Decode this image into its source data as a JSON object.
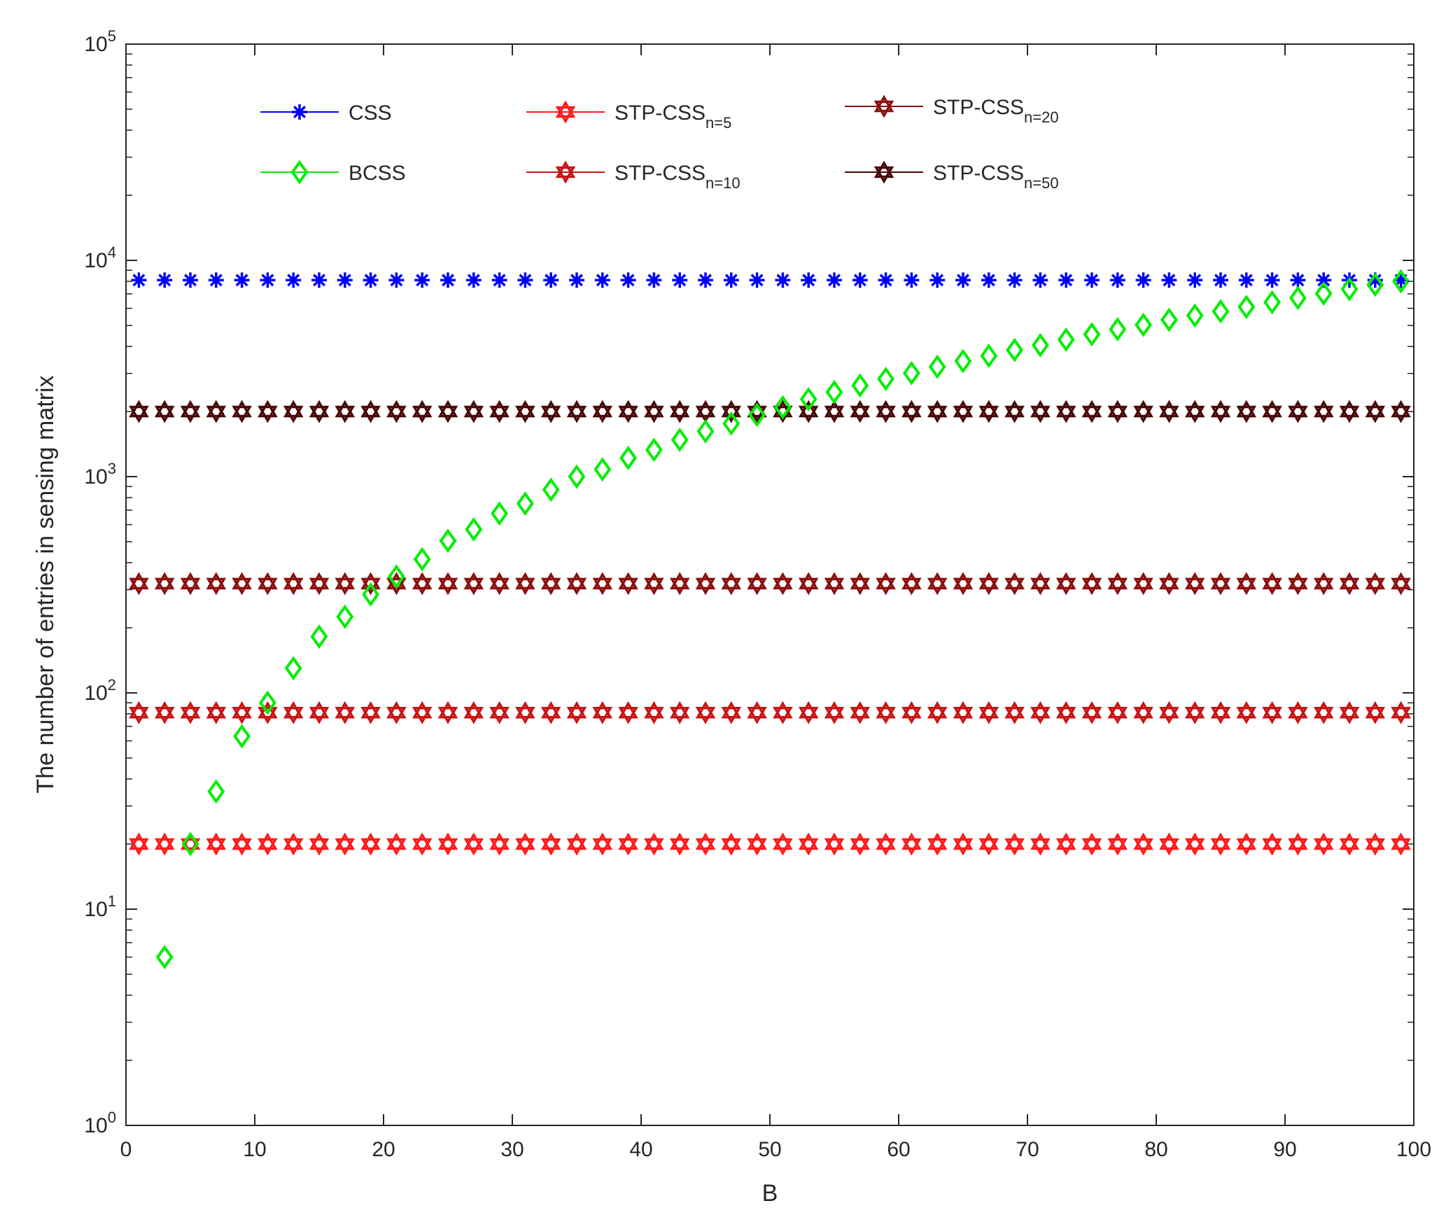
{
  "chart_data": {
    "type": "scatter",
    "title": "",
    "xlabel": "B",
    "ylabel": "The number of entries in sensing matrix",
    "xlim": [
      0,
      100
    ],
    "ylim": [
      1,
      100000
    ],
    "yscale": "log",
    "grid": false,
    "legend_position": "top",
    "x_ticks": [
      "0",
      "10",
      "20",
      "30",
      "40",
      "50",
      "60",
      "70",
      "80",
      "90",
      "100"
    ],
    "y_ticks": [
      {
        "base": "10",
        "exp": "0"
      },
      {
        "base": "10",
        "exp": "1"
      },
      {
        "base": "10",
        "exp": "2"
      },
      {
        "base": "10",
        "exp": "3"
      },
      {
        "base": "10",
        "exp": "4"
      },
      {
        "base": "10",
        "exp": "5"
      }
    ],
    "x": [
      1,
      3,
      5,
      7,
      9,
      11,
      13,
      15,
      17,
      19,
      21,
      23,
      25,
      27,
      29,
      31,
      33,
      35,
      37,
      39,
      41,
      43,
      45,
      47,
      49,
      51,
      53,
      55,
      57,
      59,
      61,
      63,
      65,
      67,
      69,
      71,
      73,
      75,
      77,
      79,
      81,
      83,
      85,
      87,
      89,
      91,
      93,
      95,
      97,
      99
    ],
    "series": [
      {
        "name": "CSS",
        "subscript": "",
        "color": "#0000ff",
        "marker": "asterisk",
        "values": [
          8100,
          8100,
          8100,
          8100,
          8100,
          8100,
          8100,
          8100,
          8100,
          8100,
          8100,
          8100,
          8100,
          8100,
          8100,
          8100,
          8100,
          8100,
          8100,
          8100,
          8100,
          8100,
          8100,
          8100,
          8100,
          8100,
          8100,
          8100,
          8100,
          8100,
          8100,
          8100,
          8100,
          8100,
          8100,
          8100,
          8100,
          8100,
          8100,
          8100,
          8100,
          8100,
          8100,
          8100,
          8100,
          8100,
          8100,
          8100,
          8100,
          8100
        ]
      },
      {
        "name": "BCSS",
        "subscript": "",
        "color": "#00ee00",
        "marker": "diamond",
        "x": [
          3,
          5,
          7,
          9,
          11,
          13,
          15,
          17,
          19,
          21,
          23,
          25,
          27,
          29,
          31,
          33,
          35,
          37,
          39,
          41,
          43,
          45,
          47,
          49,
          51,
          53,
          55,
          57,
          59,
          61,
          63,
          65,
          67,
          69,
          71,
          73,
          75,
          77,
          79,
          81,
          83,
          85,
          87,
          89,
          91,
          93,
          95,
          97,
          99
        ],
        "values": [
          6,
          20,
          35,
          63,
          90,
          130,
          182,
          225,
          285,
          345,
          415,
          505,
          570,
          675,
          750,
          870,
          1000,
          1080,
          1220,
          1330,
          1480,
          1620,
          1760,
          1930,
          2090,
          2280,
          2460,
          2640,
          2830,
          3010,
          3220,
          3420,
          3620,
          3850,
          4050,
          4300,
          4550,
          4800,
          5030,
          5310,
          5560,
          5810,
          6090,
          6400,
          6700,
          7020,
          7360,
          7710,
          8000
        ]
      },
      {
        "name": "STP-CSS",
        "subscript": "n=5",
        "color": "#ff1a1a",
        "marker": "hexagram",
        "values": [
          20,
          20,
          20,
          20,
          20,
          20,
          20,
          20,
          20,
          20,
          20,
          20,
          20,
          20,
          20,
          20,
          20,
          20,
          20,
          20,
          20,
          20,
          20,
          20,
          20,
          20,
          20,
          20,
          20,
          20,
          20,
          20,
          20,
          20,
          20,
          20,
          20,
          20,
          20,
          20,
          20,
          20,
          20,
          20,
          20,
          20,
          20,
          20,
          20,
          20
        ]
      },
      {
        "name": "STP-CSS",
        "subscript": "n=10",
        "color": "#c81414",
        "marker": "hexagram",
        "values": [
          81,
          81,
          81,
          81,
          81,
          81,
          81,
          81,
          81,
          81,
          81,
          81,
          81,
          81,
          81,
          81,
          81,
          81,
          81,
          81,
          81,
          81,
          81,
          81,
          81,
          81,
          81,
          81,
          81,
          81,
          81,
          81,
          81,
          81,
          81,
          81,
          81,
          81,
          81,
          81,
          81,
          81,
          81,
          81,
          81,
          81,
          81,
          81,
          81,
          81
        ]
      },
      {
        "name": "STP-CSS",
        "subscript": "n=20",
        "color": "#8b0f0f",
        "marker": "hexagram",
        "values": [
          320,
          320,
          320,
          320,
          320,
          320,
          320,
          320,
          320,
          320,
          320,
          320,
          320,
          320,
          320,
          320,
          320,
          320,
          320,
          320,
          320,
          320,
          320,
          320,
          320,
          320,
          320,
          320,
          320,
          320,
          320,
          320,
          320,
          320,
          320,
          320,
          320,
          320,
          320,
          320,
          320,
          320,
          320,
          320,
          320,
          320,
          320,
          320,
          320,
          320
        ]
      },
      {
        "name": "STP-CSS",
        "subscript": "n=50",
        "color": "#4a0707",
        "marker": "hexagram",
        "values": [
          2000,
          2000,
          2000,
          2000,
          2000,
          2000,
          2000,
          2000,
          2000,
          2000,
          2000,
          2000,
          2000,
          2000,
          2000,
          2000,
          2000,
          2000,
          2000,
          2000,
          2000,
          2000,
          2000,
          2000,
          2000,
          2000,
          2000,
          2000,
          2000,
          2000,
          2000,
          2000,
          2000,
          2000,
          2000,
          2000,
          2000,
          2000,
          2000,
          2000,
          2000,
          2000,
          2000,
          2000,
          2000,
          2000,
          2000,
          2000,
          2000,
          2000
        ]
      }
    ]
  }
}
